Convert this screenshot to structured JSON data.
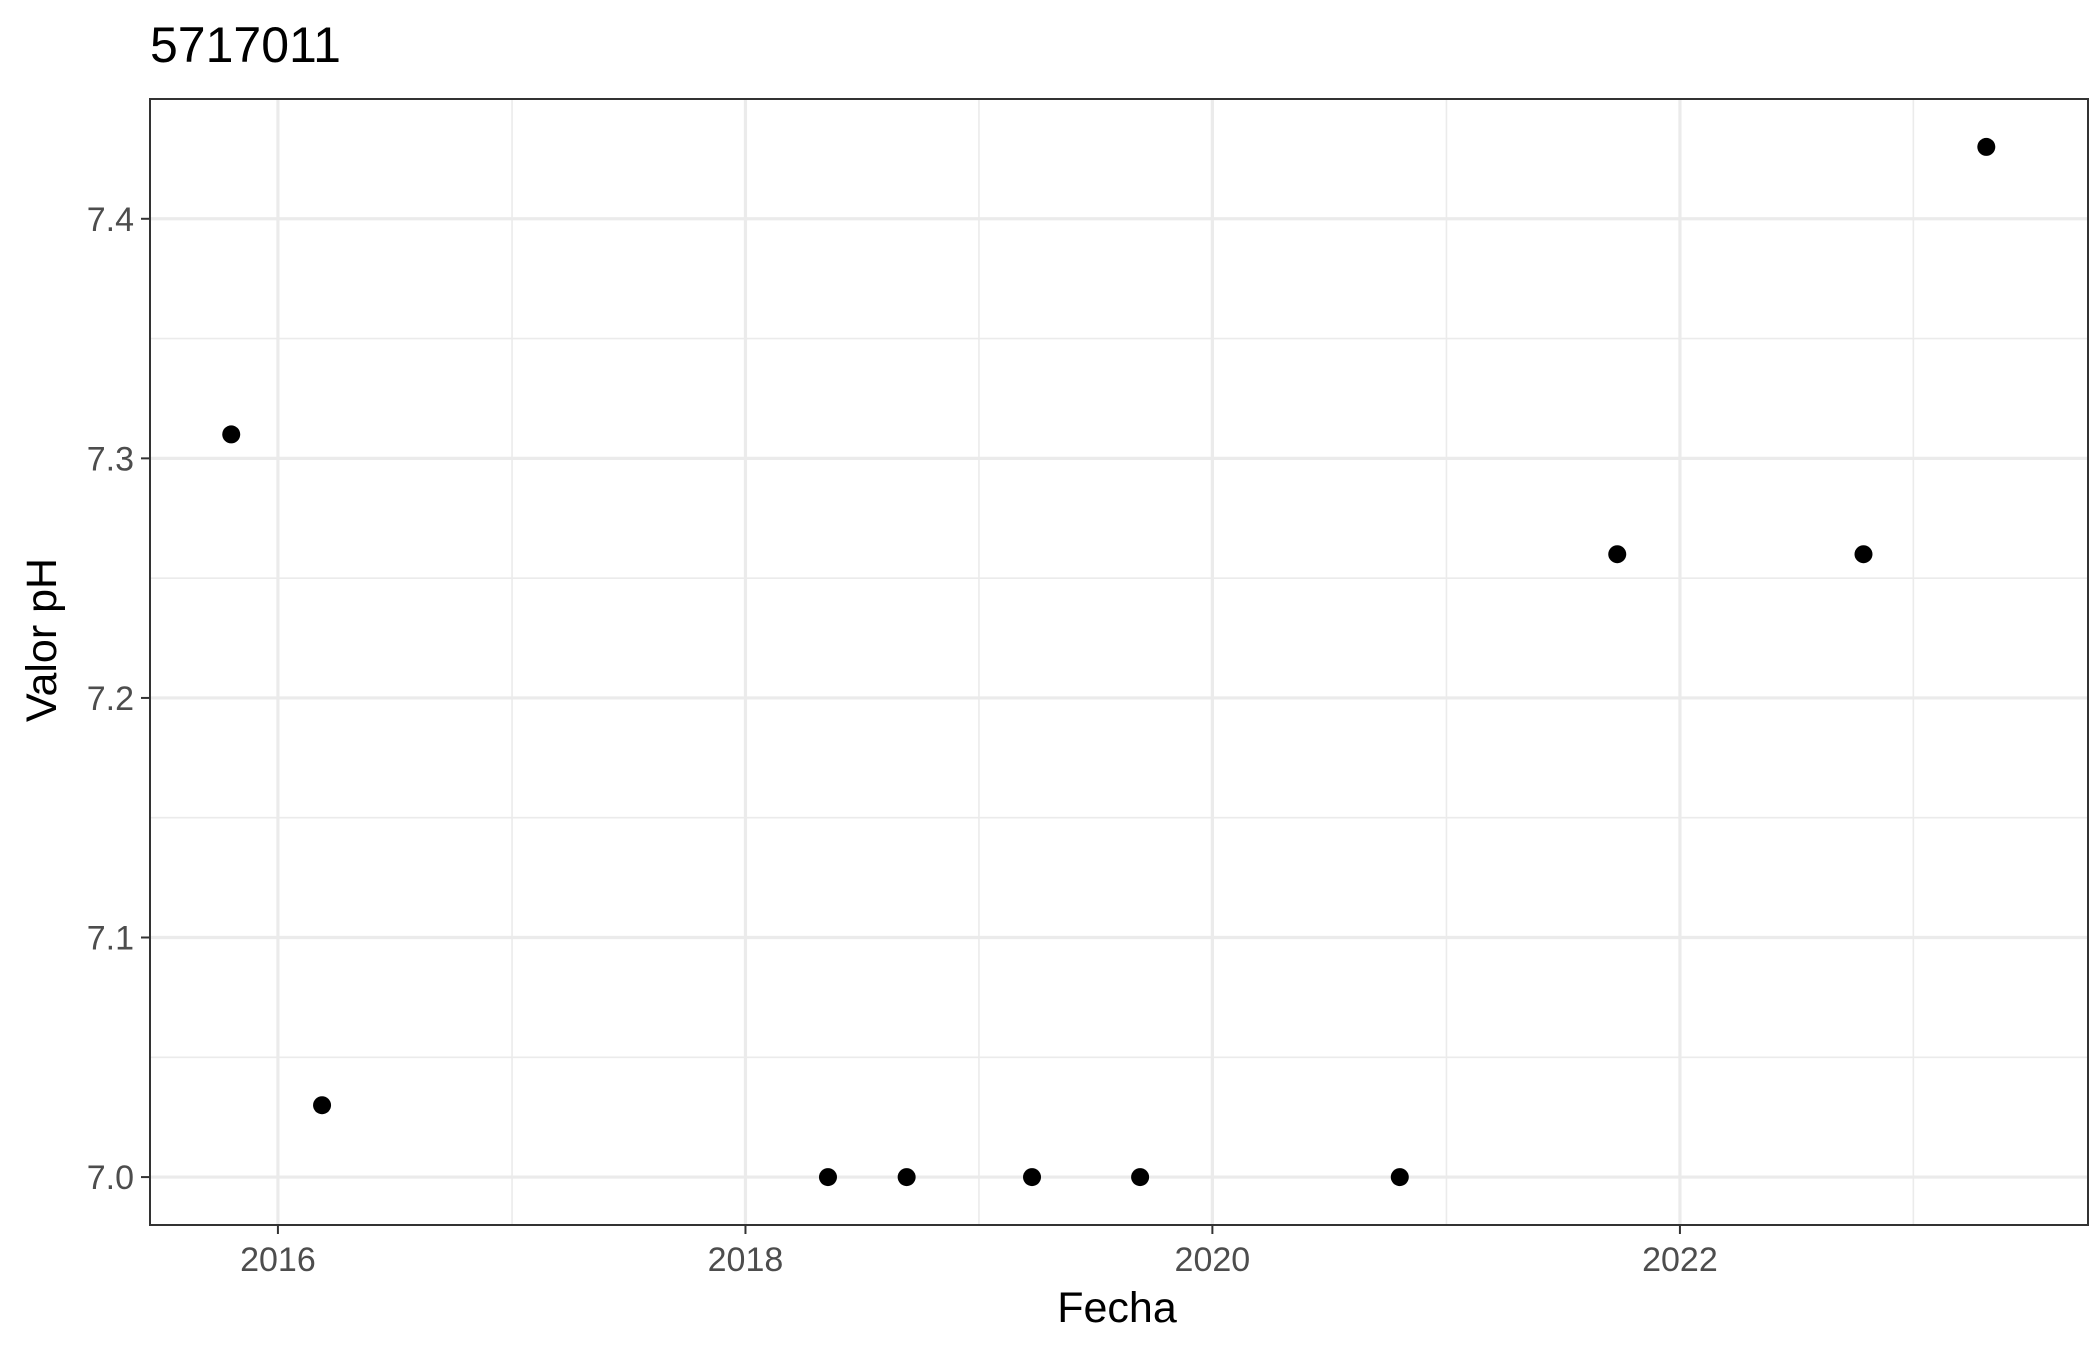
{
  "chart_data": {
    "type": "scatter",
    "title": "5717011",
    "xlabel": "Fecha",
    "ylabel": "Valor pH",
    "x_scale": "date",
    "xlim": [
      "2015-06-15",
      "2023-10-01"
    ],
    "ylim": [
      6.98,
      7.45
    ],
    "x_ticks": [
      {
        "date": "2016-01-01",
        "label": "2016"
      },
      {
        "date": "2018-01-01",
        "label": "2018"
      },
      {
        "date": "2020-01-01",
        "label": "2020"
      },
      {
        "date": "2022-01-01",
        "label": "2022"
      }
    ],
    "x_minor_ticks": [
      "2015-01-01",
      "2017-01-01",
      "2019-01-01",
      "2021-01-01",
      "2023-01-01"
    ],
    "y_ticks": [
      7.0,
      7.1,
      7.2,
      7.3,
      7.4
    ],
    "y_tick_labels": [
      "7.0",
      "7.1",
      "7.2",
      "7.3",
      "7.4"
    ],
    "y_minor_ticks": [
      7.05,
      7.15,
      7.25,
      7.35
    ],
    "grid": true,
    "legend": "none",
    "point_color": "#000000",
    "points": [
      {
        "x": "2015-10-20",
        "y": 7.31
      },
      {
        "x": "2016-03-10",
        "y": 7.03
      },
      {
        "x": "2018-05-10",
        "y": 7.0
      },
      {
        "x": "2018-09-10",
        "y": 7.0
      },
      {
        "x": "2019-03-25",
        "y": 7.0
      },
      {
        "x": "2019-09-10",
        "y": 7.0
      },
      {
        "x": "2020-10-20",
        "y": 7.0
      },
      {
        "x": "2021-09-25",
        "y": 7.26
      },
      {
        "x": "2022-10-15",
        "y": 7.26
      },
      {
        "x": "2023-04-25",
        "y": 7.43
      }
    ]
  }
}
